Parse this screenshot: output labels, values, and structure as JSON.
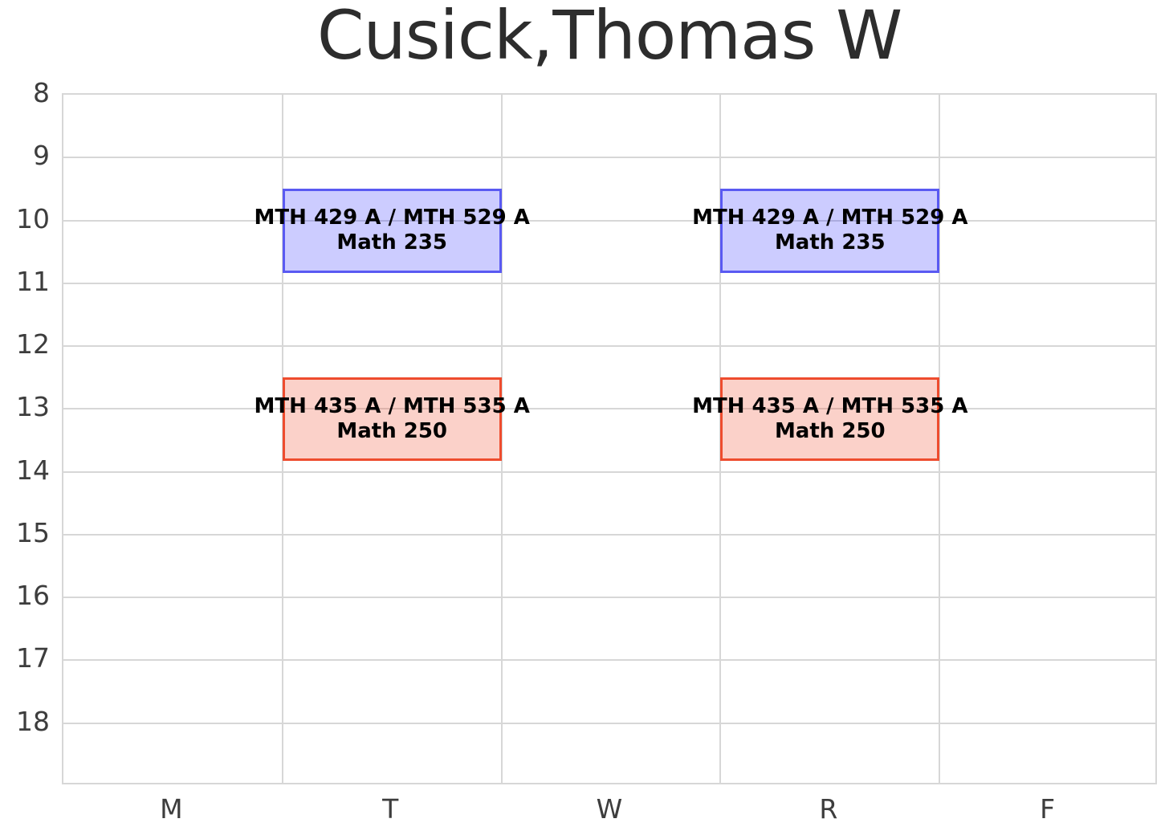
{
  "title": {
    "text": "Cusick,Thomas W",
    "color": "#2d2d2d"
  },
  "chart_data": {
    "type": "bar",
    "variant": "weekly-course-schedule-timetable",
    "title": "Cusick,Thomas W",
    "x_categories": [
      "M",
      "T",
      "W",
      "R",
      "F"
    ],
    "y_ticks": [
      "8",
      "9",
      "10",
      "11",
      "12",
      "13",
      "14",
      "15",
      "16",
      "17",
      "18"
    ],
    "y_range": [
      8,
      19
    ],
    "y_direction": "down",
    "grid": true,
    "legend": "none",
    "colors": {
      "grid": "#d7d7d7",
      "tick_labels": "#3d3d3d",
      "title": "#2d2d2d",
      "blue_fill": "rgba(0,0,255,0.2)",
      "blue_border": "#5a5af2",
      "red_fill": "rgba(240,70,40,0.25)",
      "red_border": "#ee4c2e"
    },
    "events": [
      {
        "day": "T",
        "day_index": 1,
        "start_hour": 9.5,
        "end_hour": 10.83,
        "line1": "MTH 429 A / MTH 529 A",
        "line2": "Math 235",
        "fill": "rgba(0,0,255,0.2)",
        "border": "#5a5af2"
      },
      {
        "day": "R",
        "day_index": 3,
        "start_hour": 9.5,
        "end_hour": 10.83,
        "line1": "MTH 429 A / MTH 529 A",
        "line2": "Math 235",
        "fill": "rgba(0,0,255,0.2)",
        "border": "#5a5af2"
      },
      {
        "day": "T",
        "day_index": 1,
        "start_hour": 12.5,
        "end_hour": 13.83,
        "line1": "MTH 435 A / MTH 535 A",
        "line2": "Math 250",
        "fill": "rgba(240,70,40,0.25)",
        "border": "#ee4c2e"
      },
      {
        "day": "R",
        "day_index": 3,
        "start_hour": 12.5,
        "end_hour": 13.83,
        "line1": "MTH 435 A / MTH 535 A",
        "line2": "Math 250",
        "fill": "rgba(240,70,40,0.25)",
        "border": "#ee4c2e"
      }
    ]
  }
}
